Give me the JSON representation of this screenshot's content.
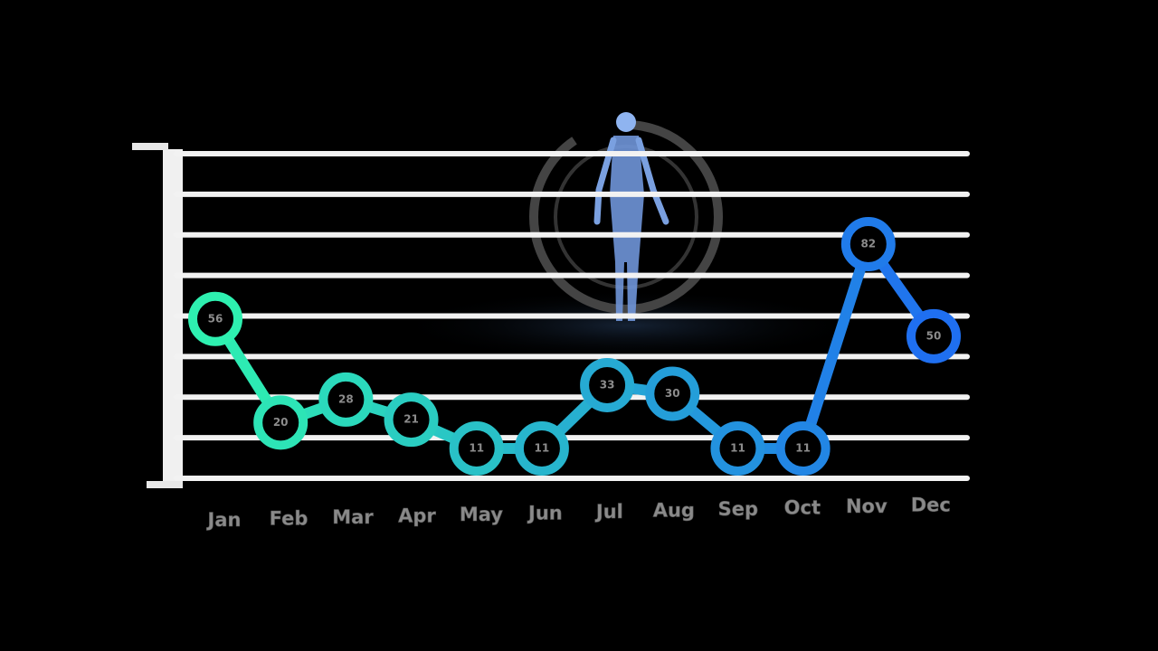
{
  "chart_data": {
    "type": "line",
    "categories": [
      "Jan",
      "Feb",
      "Mar",
      "Apr",
      "May",
      "Jun",
      "Jul",
      "Aug",
      "Sep",
      "Oct",
      "Nov",
      "Dec"
    ],
    "values": [
      56,
      20,
      28,
      21,
      11,
      11,
      33,
      30,
      11,
      11,
      82,
      50
    ],
    "ylim": [
      0,
      115
    ],
    "grid": true,
    "colors": {
      "start": "#2ef0b0",
      "end": "#1f6ff0",
      "grid": "#f2f2f2",
      "background": "#000000"
    },
    "decoration": "human-skeleton-hologram"
  }
}
